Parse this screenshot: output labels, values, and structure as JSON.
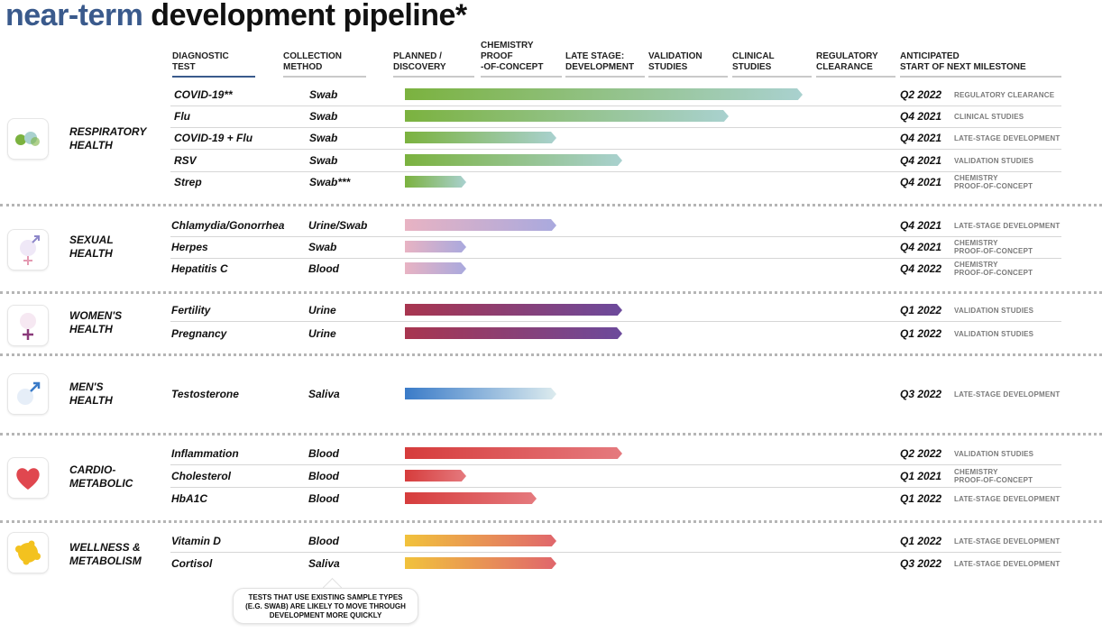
{
  "title": {
    "part1": "near-term",
    "part2": "development pipeline*"
  },
  "headers": {
    "diagnostic_test": "DIAGNOSTIC\nTEST",
    "collection_method": "COLLECTION\nMETHOD",
    "stages": [
      "PLANNED /\nDISCOVERY",
      "CHEMISTRY\nPROOF\n-OF-CONCEPT",
      "LATE STAGE:\nDEVELOPMENT",
      "VALIDATION\nSTUDIES",
      "CLINICAL\nSTUDIES",
      "REGULATORY\nCLEARANCE"
    ],
    "milestone": "ANTICIPATED\nSTART OF NEXT MILESTONE"
  },
  "chart_data": {
    "type": "bar",
    "orientation": "horizontal",
    "x_scale": "development stage",
    "stage_order": [
      "PLANNED / DISCOVERY",
      "CHEMISTRY PROOF-OF-CONCEPT",
      "LATE STAGE: DEVELOPMENT",
      "VALIDATION STUDIES",
      "CLINICAL STUDIES",
      "REGULATORY CLEARANCE"
    ],
    "categories": [
      {
        "name": "RESPIRATORY\nHEALTH",
        "icon": "lungs-icon",
        "color": "#8ab54a",
        "tests": [
          {
            "test": "COVID-19**",
            "method": "Swab",
            "progress_stages": 4.85,
            "milestone": "Q2 2022",
            "next_stage": "REGULATORY CLEARANCE"
          },
          {
            "test": "Flu",
            "method": "Swab",
            "progress_stages": 3.95,
            "milestone": "Q4 2021",
            "next_stage": "CLINICAL STUDIES"
          },
          {
            "test": "COVID-19 + Flu",
            "method": "Swab",
            "progress_stages": 1.85,
            "milestone": "Q4 2021",
            "next_stage": "LATE-STAGE DEVELOPMENT"
          },
          {
            "test": "RSV",
            "method": "Swab",
            "progress_stages": 2.65,
            "milestone": "Q4 2021",
            "next_stage": "VALIDATION STUDIES"
          },
          {
            "test": "Strep",
            "method": "Swab***",
            "progress_stages": 0.75,
            "milestone": "Q4 2021",
            "next_stage": "CHEMISTRY\nPROOF-OF-CONCEPT"
          }
        ]
      },
      {
        "name": "SEXUAL\nHEALTH",
        "icon": "gender-symbols-icon",
        "color": "#b8a6d8",
        "tests": [
          {
            "test": "Chlamydia/Gonorrhea",
            "method": "Urine/Swab",
            "progress_stages": 1.85,
            "milestone": "Q4 2021",
            "next_stage": "LATE-STAGE DEVELOPMENT"
          },
          {
            "test": "Herpes",
            "method": "Swab",
            "progress_stages": 0.75,
            "milestone": "Q4 2021",
            "next_stage": "CHEMISTRY\nPROOF-OF-CONCEPT"
          },
          {
            "test": "Hepatitis C",
            "method": "Blood",
            "progress_stages": 0.75,
            "milestone": "Q4 2022",
            "next_stage": "CHEMISTRY\nPROOF-OF-CONCEPT"
          }
        ]
      },
      {
        "name": "WOMEN'S\nHEALTH",
        "icon": "female-symbol-icon",
        "color": "#7a3f8f",
        "tests": [
          {
            "test": "Fertility",
            "method": "Urine",
            "progress_stages": 2.65,
            "milestone": "Q1 2022",
            "next_stage": "VALIDATION STUDIES"
          },
          {
            "test": "Pregnancy",
            "method": "Urine",
            "progress_stages": 2.65,
            "milestone": "Q1 2022",
            "next_stage": "VALIDATION STUDIES"
          }
        ]
      },
      {
        "name": "MEN'S\nHEALTH",
        "icon": "male-symbol-icon",
        "color": "#3b7fc4",
        "tests": [
          {
            "test": "Testosterone",
            "method": "Saliva",
            "progress_stages": 1.85,
            "milestone": "Q3 2022",
            "next_stage": "LATE-STAGE DEVELOPMENT"
          }
        ]
      },
      {
        "name": "CARDIO-\nMETABOLIC",
        "icon": "heart-icon",
        "color": "#d94545",
        "tests": [
          {
            "test": "Inflammation",
            "method": "Blood",
            "progress_stages": 2.65,
            "milestone": "Q2 2022",
            "next_stage": "VALIDATION STUDIES"
          },
          {
            "test": "Cholesterol",
            "method": "Blood",
            "progress_stages": 0.75,
            "milestone": "Q1 2021",
            "next_stage": "CHEMISTRY\nPROOF-OF-CONCEPT"
          },
          {
            "test": "HbA1C",
            "method": "Blood",
            "progress_stages": 1.6,
            "milestone": "Q1 2022",
            "next_stage": "LATE-STAGE DEVELOPMENT"
          }
        ]
      },
      {
        "name": "WELLNESS &\nMETABOLISM",
        "icon": "sun-icon",
        "color": "#f0b93a",
        "tests": [
          {
            "test": "Vitamin D",
            "method": "Blood",
            "progress_stages": 1.85,
            "milestone": "Q1 2022",
            "next_stage": "LATE-STAGE DEVELOPMENT"
          },
          {
            "test": "Cortisol",
            "method": "Saliva",
            "progress_stages": 1.85,
            "milestone": "Q3 2022",
            "next_stage": "LATE-STAGE DEVELOPMENT"
          }
        ]
      }
    ]
  },
  "gradients": {
    "respiratory": [
      "#7bb23f",
      "#a9d1cf"
    ],
    "sexual": [
      "#e8b3c3",
      "#a9a9de"
    ],
    "womens": [
      "#a8354f",
      "#6c4a9c"
    ],
    "mens": [
      "#3a7bc8",
      "#dcebee"
    ],
    "cardio": [
      "#d63c3c",
      "#e57a7e"
    ],
    "wellness": [
      "#f1c23c",
      "#e0666c"
    ]
  },
  "callout": "TESTS THAT USE EXISTING SAMPLE TYPES\n(E.G. SWAB) ARE LIKELY TO MOVE THROUGH\nDEVELOPMENT MORE QUICKLY"
}
